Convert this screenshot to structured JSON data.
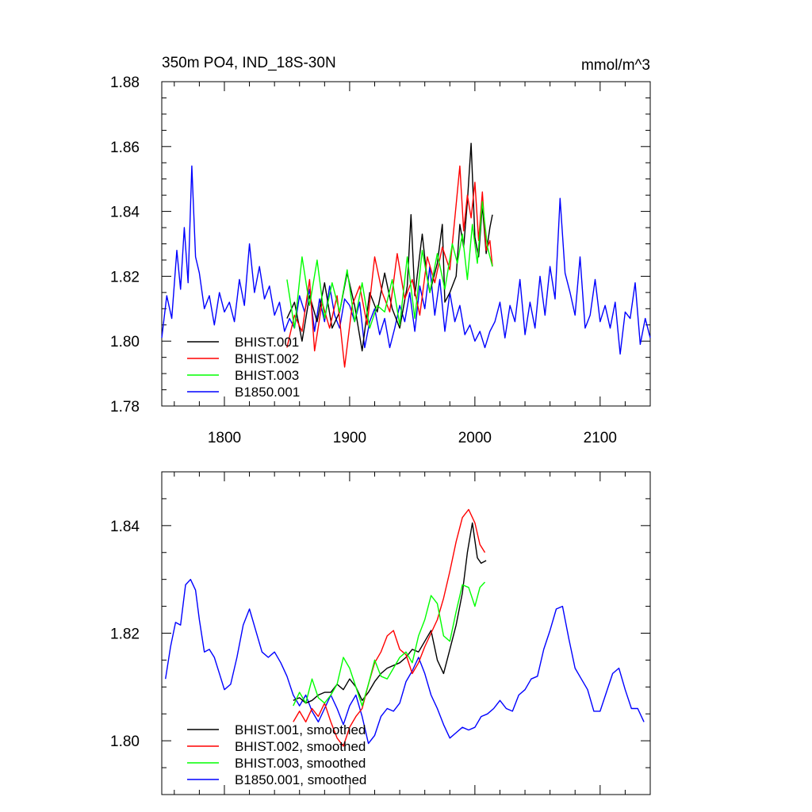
{
  "chart_data": [
    {
      "type": "line",
      "title_left": "350m PO4, IND_18S-30N",
      "title_right": "mmol/m^3",
      "xlim": [
        1750,
        2140
      ],
      "ylim": [
        1.78,
        1.88
      ],
      "xticks": [
        1800,
        1900,
        2000,
        2100
      ],
      "xtick_labels": [
        "1800",
        "1900",
        "2000",
        "2100"
      ],
      "yticks": [
        1.78,
        1.8,
        1.82,
        1.84,
        1.86,
        1.88
      ],
      "ytick_labels": [
        "1.78",
        "1.80",
        "1.82",
        "1.84",
        "1.86",
        "1.88"
      ],
      "legend_position": "bottom-left",
      "series": [
        {
          "name": "BHIST.001",
          "color": "#000000",
          "x": [
            1850,
            1856,
            1862,
            1868,
            1874,
            1880,
            1886,
            1892,
            1898,
            1904,
            1910,
            1916,
            1922,
            1928,
            1934,
            1940,
            1946,
            1949,
            1952,
            1958,
            1961,
            1964,
            1970,
            1974,
            1976,
            1980,
            1985,
            1988,
            1991,
            1994,
            1997,
            2000,
            2003,
            2006,
            2009,
            2012,
            2014
          ],
          "y": [
            1.807,
            1.812,
            1.8,
            1.814,
            1.806,
            1.818,
            1.804,
            1.809,
            1.821,
            1.811,
            1.797,
            1.815,
            1.809,
            1.821,
            1.81,
            1.804,
            1.817,
            1.839,
            1.814,
            1.833,
            1.822,
            1.815,
            1.824,
            1.836,
            1.812,
            1.815,
            1.82,
            1.836,
            1.829,
            1.843,
            1.861,
            1.832,
            1.826,
            1.842,
            1.827,
            1.835,
            1.839
          ]
        },
        {
          "name": "BHIST.002",
          "color": "#ff0000",
          "x": [
            1850,
            1856,
            1862,
            1868,
            1872,
            1878,
            1884,
            1890,
            1896,
            1902,
            1908,
            1914,
            1920,
            1926,
            1932,
            1938,
            1944,
            1950,
            1956,
            1962,
            1968,
            1974,
            1980,
            1985,
            1988,
            1991,
            1994,
            1997,
            2000,
            2003,
            2006,
            2009,
            2012,
            2014
          ],
          "y": [
            1.798,
            1.808,
            1.803,
            1.819,
            1.797,
            1.812,
            1.804,
            1.814,
            1.792,
            1.811,
            1.817,
            1.805,
            1.826,
            1.815,
            1.809,
            1.827,
            1.813,
            1.819,
            1.808,
            1.826,
            1.818,
            1.829,
            1.822,
            1.842,
            1.854,
            1.834,
            1.845,
            1.838,
            1.849,
            1.831,
            1.846,
            1.828,
            1.831,
            1.823
          ]
        },
        {
          "name": "BHIST.003",
          "color": "#00ff00",
          "x": [
            1850,
            1856,
            1862,
            1868,
            1874,
            1880,
            1886,
            1892,
            1898,
            1904,
            1910,
            1916,
            1922,
            1928,
            1934,
            1940,
            1946,
            1952,
            1958,
            1964,
            1970,
            1976,
            1982,
            1986,
            1990,
            1994,
            1998,
            2002,
            2006,
            2010,
            2014
          ],
          "y": [
            1.819,
            1.804,
            1.826,
            1.811,
            1.825,
            1.807,
            1.818,
            1.809,
            1.822,
            1.806,
            1.818,
            1.804,
            1.811,
            1.809,
            1.819,
            1.805,
            1.826,
            1.807,
            1.828,
            1.815,
            1.827,
            1.816,
            1.83,
            1.824,
            1.833,
            1.819,
            1.836,
            1.824,
            1.843,
            1.829,
            1.823
          ]
        },
        {
          "name": "B1850.001",
          "color": "#0000ff",
          "x": [
            1750,
            1754,
            1758,
            1762,
            1765,
            1768,
            1771,
            1774,
            1777,
            1780,
            1784,
            1788,
            1792,
            1796,
            1800,
            1804,
            1808,
            1812,
            1816,
            1820,
            1824,
            1828,
            1832,
            1836,
            1840,
            1844,
            1848,
            1852,
            1856,
            1860,
            1864,
            1868,
            1872,
            1876,
            1880,
            1884,
            1888,
            1892,
            1896,
            1900,
            1904,
            1908,
            1912,
            1916,
            1920,
            1924,
            1928,
            1932,
            1936,
            1940,
            1944,
            1948,
            1952,
            1956,
            1960,
            1964,
            1968,
            1972,
            1976,
            1980,
            1984,
            1988,
            1992,
            1996,
            2000,
            2004,
            2008,
            2012,
            2016,
            2020,
            2024,
            2028,
            2032,
            2036,
            2040,
            2044,
            2048,
            2052,
            2056,
            2060,
            2064,
            2068,
            2072,
            2076,
            2080,
            2084,
            2088,
            2092,
            2096,
            2100,
            2104,
            2108,
            2112,
            2116,
            2120,
            2124,
            2128,
            2132,
            2136,
            2140
          ],
          "y": [
            1.801,
            1.814,
            1.807,
            1.828,
            1.816,
            1.835,
            1.818,
            1.854,
            1.826,
            1.821,
            1.81,
            1.814,
            1.805,
            1.815,
            1.809,
            1.812,
            1.806,
            1.819,
            1.811,
            1.83,
            1.815,
            1.823,
            1.813,
            1.817,
            1.808,
            1.812,
            1.803,
            1.807,
            1.804,
            1.814,
            1.809,
            1.816,
            1.803,
            1.813,
            1.806,
            1.817,
            1.808,
            1.804,
            1.813,
            1.811,
            1.806,
            1.812,
            1.798,
            1.806,
            1.81,
            1.802,
            1.807,
            1.798,
            1.804,
            1.811,
            1.806,
            1.815,
            1.803,
            1.817,
            1.81,
            1.823,
            1.808,
            1.819,
            1.803,
            1.815,
            1.806,
            1.811,
            1.802,
            1.805,
            1.8,
            1.803,
            1.798,
            1.803,
            1.806,
            1.812,
            1.801,
            1.811,
            1.806,
            1.819,
            1.802,
            1.812,
            1.804,
            1.82,
            1.808,
            1.823,
            1.813,
            1.844,
            1.821,
            1.815,
            1.808,
            1.826,
            1.804,
            1.808,
            1.819,
            1.806,
            1.811,
            1.804,
            1.812,
            1.796,
            1.809,
            1.807,
            1.818,
            1.799,
            1.807,
            1.801
          ]
        }
      ]
    },
    {
      "type": "line",
      "xlim": [
        1750,
        2140
      ],
      "ylim": [
        1.79,
        1.85
      ],
      "xticks": [
        1800,
        1900,
        2000,
        2100
      ],
      "yticks": [
        1.8,
        1.82,
        1.84
      ],
      "ytick_labels": [
        "1.80",
        "1.82",
        "1.84"
      ],
      "legend_position": "bottom-left",
      "series": [
        {
          "name": "BHIST.001, smoothed",
          "color": "#000000",
          "x": [
            1855,
            1860,
            1865,
            1870,
            1875,
            1880,
            1885,
            1890,
            1895,
            1900,
            1905,
            1910,
            1915,
            1920,
            1925,
            1930,
            1935,
            1940,
            1945,
            1950,
            1955,
            1960,
            1965,
            1970,
            1975,
            1980,
            1985,
            1990,
            1994,
            1998,
            2002,
            2005,
            2009
          ],
          "y": [
            1.8075,
            1.808,
            1.807,
            1.8075,
            1.8085,
            1.809,
            1.809,
            1.8105,
            1.8095,
            1.8115,
            1.81,
            1.8075,
            1.809,
            1.811,
            1.8125,
            1.8135,
            1.814,
            1.8145,
            1.8155,
            1.817,
            1.8165,
            1.8185,
            1.8205,
            1.815,
            1.8125,
            1.817,
            1.8215,
            1.8275,
            1.835,
            1.8405,
            1.834,
            1.833,
            1.8335
          ]
        },
        {
          "name": "BHIST.002, smoothed",
          "color": "#ff0000",
          "x": [
            1855,
            1860,
            1865,
            1870,
            1875,
            1880,
            1885,
            1890,
            1895,
            1900,
            1905,
            1910,
            1915,
            1920,
            1925,
            1930,
            1935,
            1940,
            1945,
            1950,
            1955,
            1960,
            1965,
            1970,
            1975,
            1980,
            1985,
            1990,
            1995,
            2000,
            2004,
            2008
          ],
          "y": [
            1.8035,
            1.8055,
            1.8035,
            1.806,
            1.8045,
            1.807,
            1.8035,
            1.8005,
            1.799,
            1.8025,
            1.8045,
            1.806,
            1.8105,
            1.8145,
            1.8165,
            1.8195,
            1.8205,
            1.817,
            1.816,
            1.8125,
            1.8145,
            1.8175,
            1.82,
            1.8225,
            1.8265,
            1.8315,
            1.837,
            1.8415,
            1.843,
            1.8405,
            1.8365,
            1.835
          ]
        },
        {
          "name": "BHIST.003, smoothed",
          "color": "#00ff00",
          "x": [
            1855,
            1860,
            1865,
            1870,
            1875,
            1880,
            1885,
            1890,
            1895,
            1900,
            1905,
            1910,
            1915,
            1920,
            1925,
            1930,
            1935,
            1940,
            1945,
            1950,
            1955,
            1960,
            1965,
            1970,
            1975,
            1980,
            1985,
            1990,
            1995,
            2000,
            2004,
            2008
          ],
          "y": [
            1.8065,
            1.809,
            1.807,
            1.8115,
            1.808,
            1.807,
            1.8085,
            1.8105,
            1.8155,
            1.8135,
            1.81,
            1.8065,
            1.8105,
            1.815,
            1.812,
            1.8115,
            1.8135,
            1.8155,
            1.8165,
            1.8145,
            1.8195,
            1.8225,
            1.827,
            1.8255,
            1.8195,
            1.8185,
            1.824,
            1.829,
            1.8285,
            1.825,
            1.8285,
            1.8295
          ]
        },
        {
          "name": "B1850.001, smoothed",
          "color": "#0000ff",
          "x": [
            1753,
            1757,
            1761,
            1765,
            1769,
            1773,
            1777,
            1780,
            1784,
            1788,
            1792,
            1796,
            1800,
            1805,
            1810,
            1815,
            1820,
            1825,
            1830,
            1835,
            1840,
            1845,
            1850,
            1855,
            1860,
            1865,
            1870,
            1875,
            1880,
            1885,
            1890,
            1895,
            1900,
            1905,
            1910,
            1915,
            1920,
            1925,
            1930,
            1935,
            1940,
            1945,
            1950,
            1955,
            1960,
            1965,
            1970,
            1975,
            1980,
            1985,
            1990,
            1995,
            2000,
            2005,
            2010,
            2015,
            2020,
            2025,
            2030,
            2035,
            2040,
            2045,
            2050,
            2055,
            2060,
            2065,
            2070,
            2075,
            2080,
            2085,
            2090,
            2095,
            2100,
            2105,
            2110,
            2115,
            2120,
            2125,
            2130,
            2135
          ],
          "y": [
            1.8115,
            1.8175,
            1.822,
            1.8215,
            1.829,
            1.83,
            1.828,
            1.8225,
            1.8165,
            1.817,
            1.8155,
            1.8125,
            1.8095,
            1.8105,
            1.8155,
            1.8215,
            1.8245,
            1.8205,
            1.8165,
            1.8155,
            1.8165,
            1.8145,
            1.812,
            1.8085,
            1.8065,
            1.8085,
            1.8055,
            1.8035,
            1.806,
            1.8085,
            1.806,
            1.803,
            1.8065,
            1.8085,
            1.8045,
            1.7995,
            1.801,
            1.8045,
            1.806,
            1.8055,
            1.807,
            1.811,
            1.813,
            1.8155,
            1.8125,
            1.8085,
            1.806,
            1.803,
            1.8005,
            1.8015,
            1.8025,
            1.802,
            1.8025,
            1.8045,
            1.805,
            1.806,
            1.8075,
            1.806,
            1.8055,
            1.8085,
            1.8095,
            1.8115,
            1.812,
            1.817,
            1.8205,
            1.8245,
            1.825,
            1.819,
            1.8135,
            1.8115,
            1.8095,
            1.8055,
            1.8055,
            1.809,
            1.8125,
            1.8135,
            1.8095,
            1.806,
            1.806,
            1.8035
          ]
        }
      ]
    }
  ]
}
